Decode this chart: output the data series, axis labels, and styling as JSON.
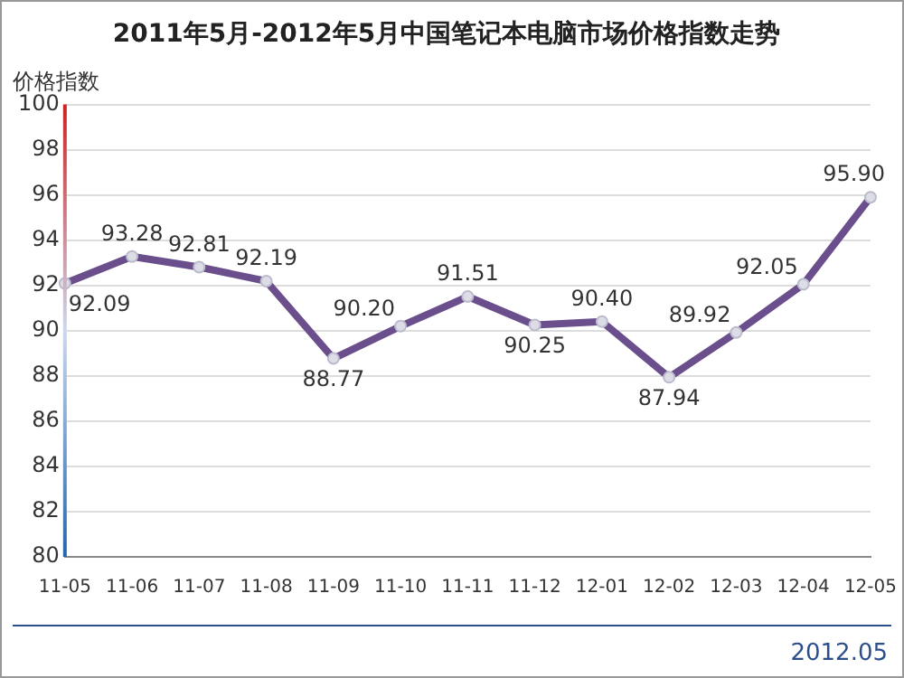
{
  "chart_data": {
    "type": "line",
    "title": "2011年5月-2012年5月中国笔记本电脑市场价格指数走势",
    "ylabel": "价格指数",
    "categories": [
      "11-05",
      "11-06",
      "11-07",
      "11-08",
      "11-09",
      "11-10",
      "11-11",
      "11-12",
      "12-01",
      "12-02",
      "12-03",
      "12-04",
      "12-05"
    ],
    "series": [
      {
        "color": "#6a4f8c",
        "values": [
          92.09,
          93.28,
          92.81,
          92.19,
          88.77,
          90.2,
          91.51,
          90.25,
          90.4,
          87.94,
          89.92,
          92.05,
          95.9
        ],
        "value_labels": [
          "92.09",
          "93.28",
          "92.81",
          "92.19",
          "88.77",
          "90.20",
          "91.51",
          "90.25",
          "90.40",
          "87.94",
          "89.92",
          "92.05",
          "95.90"
        ]
      }
    ],
    "ylim": [
      80,
      100
    ],
    "yticks": [
      80,
      82,
      84,
      86,
      88,
      90,
      92,
      94,
      96,
      98,
      100
    ],
    "grid": "y",
    "marker": "circle",
    "legend": false,
    "annotations": [
      "2012.05"
    ]
  }
}
